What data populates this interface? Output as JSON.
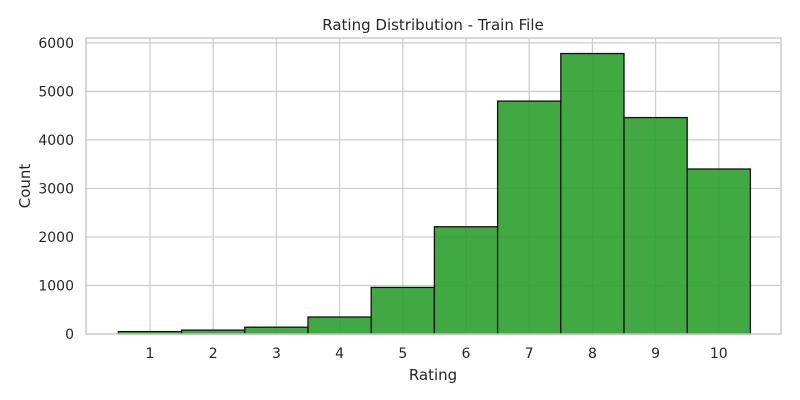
{
  "chart_data": {
    "type": "bar",
    "title": "Rating Distribution - Train File",
    "xlabel": "Rating",
    "ylabel": "Count",
    "categories": [
      "1",
      "2",
      "3",
      "4",
      "5",
      "6",
      "7",
      "8",
      "9",
      "10"
    ],
    "values": [
      50,
      80,
      140,
      350,
      960,
      2210,
      4800,
      5780,
      4460,
      3400
    ],
    "ylim": [
      0,
      6100
    ],
    "yticks": [
      0,
      1000,
      2000,
      3000,
      4000,
      5000,
      6000
    ],
    "grid": true,
    "bar_color": "#2ca02c",
    "bar_edge_color": "#111111"
  }
}
